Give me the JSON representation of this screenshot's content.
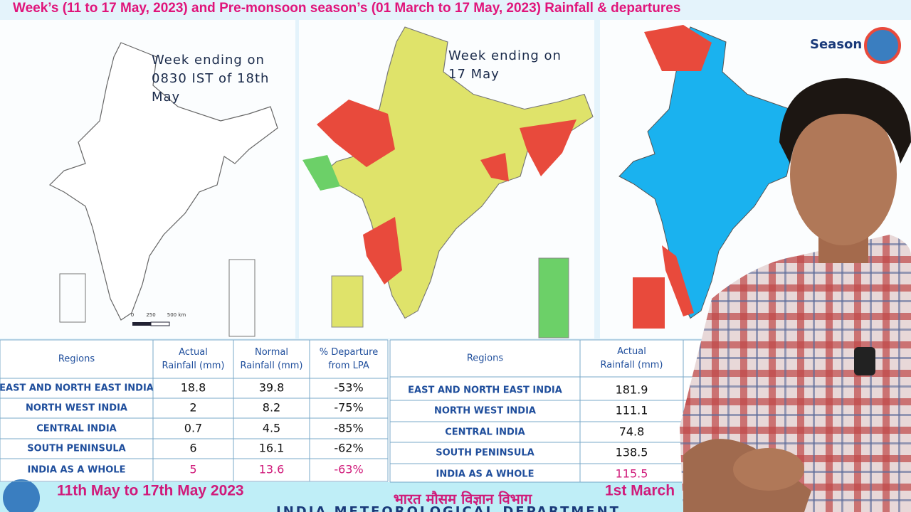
{
  "header": {
    "title": "Week’s (11 to 17 May,  2023) and Pre-monsoon season’s (01 March to 17 May,  2023) Rainfall & departures"
  },
  "maps": [
    {
      "caption": [
        "Week ending on",
        "0830 IST of 18th",
        "May"
      ],
      "scale": [
        "0",
        "250",
        "500 km"
      ]
    },
    {
      "caption": [
        "Week ending on",
        "17 May"
      ]
    },
    {
      "caption": [
        "Season"
      ]
    }
  ],
  "table_week": {
    "headers": [
      [
        "Regions"
      ],
      [
        "Actual",
        "Rainfall (mm)"
      ],
      [
        "Normal",
        "Rainfall (mm)"
      ],
      [
        "% Departure",
        "from LPA"
      ]
    ],
    "rows": [
      [
        "EAST AND NORTH EAST INDIA",
        "18.8",
        "39.8",
        "-53%"
      ],
      [
        "NORTH WEST INDIA",
        "2",
        "8.2",
        "-75%"
      ],
      [
        "CENTRAL INDIA",
        "0.7",
        "4.5",
        "-85%"
      ],
      [
        "SOUTH PENINSULA",
        "6",
        "16.1",
        "-62%"
      ],
      [
        "INDIA AS A WHOLE",
        "5",
        "13.6",
        "-63%"
      ]
    ]
  },
  "table_season": {
    "headers": [
      [
        "Regions"
      ],
      [
        "Actual",
        "Rainfall (mm)"
      ]
    ],
    "rows": [
      [
        "EAST AND NORTH EAST INDIA",
        "181.9"
      ],
      [
        "NORTH WEST INDIA",
        "111.1"
      ],
      [
        "CENTRAL INDIA",
        "74.8"
      ],
      [
        "SOUTH PENINSULA",
        "138.5"
      ],
      [
        "INDIA AS A WHOLE",
        "115.5"
      ]
    ]
  },
  "footer": {
    "week": "11th May to 17th May 2023",
    "hindi": "भारत मौसम विज्ञान विभाग",
    "season": "1st March",
    "english": "INDIA METEOROLOGICAL DEPARTMENT"
  }
}
